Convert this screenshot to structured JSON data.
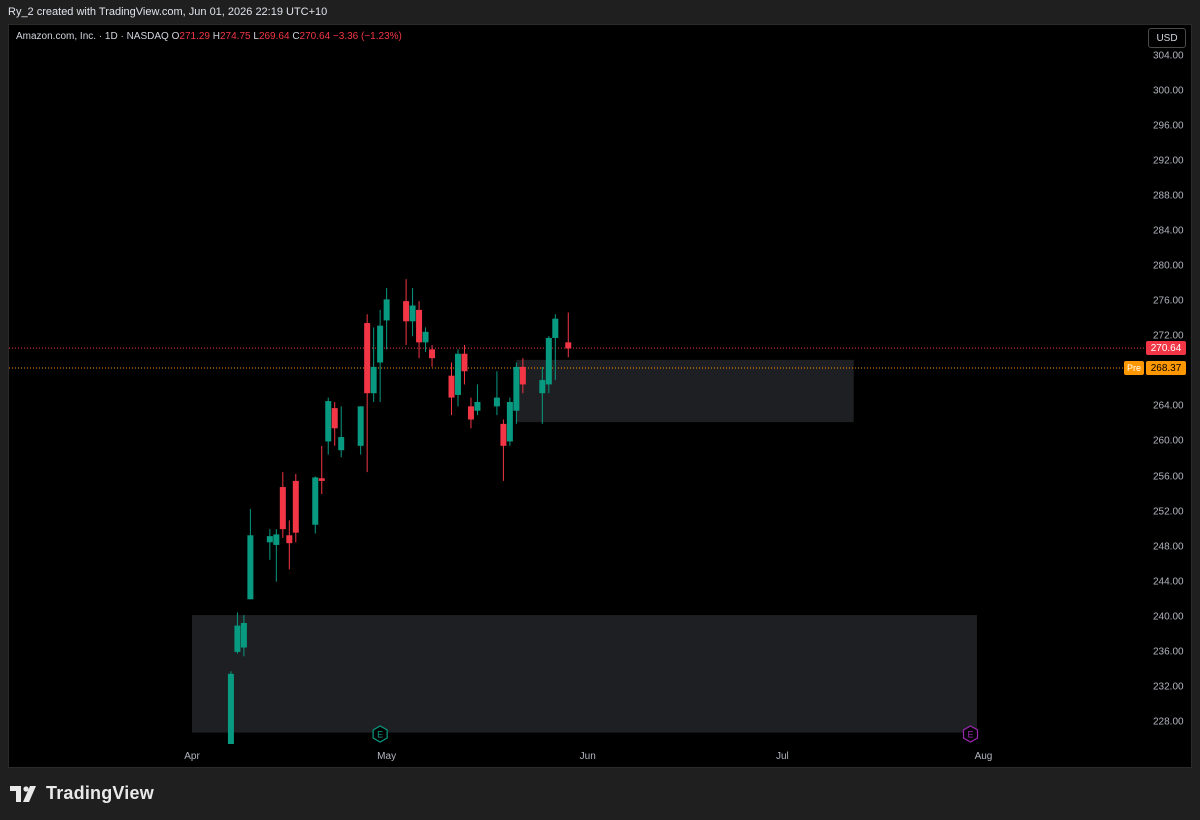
{
  "header": {
    "text": "Ry_2 created with TradingView.com, Jun 01, 2026 22:19 UTC+10"
  },
  "legend": {
    "symbol": "Amazon.com, Inc. · 1D · NASDAQ",
    "o_label": "O",
    "o": "271.29",
    "h_label": "H",
    "h": "274.75",
    "l_label": "L",
    "l": "269.64",
    "c_label": "C",
    "c": "270.64",
    "change": "−3.36 (−1.23%)"
  },
  "currency_button": "USD",
  "price_labels": {
    "last": "270.64",
    "pre_tag": "Pre",
    "pre": "268.37"
  },
  "footer": {
    "brand": "TradingView"
  },
  "colors": {
    "up": "#089981",
    "down": "#f23645",
    "pre": "#ff9800",
    "zone": "#1e1f22",
    "earnings_past": "#089981",
    "earnings_future": "#9c27b0"
  },
  "icons": {
    "earnings": "E",
    "logo": "tradingview-logo-icon"
  },
  "chart_data": {
    "type": "candlestick",
    "ylim": [
      225.5,
      307.6
    ],
    "y_ticks": [
      "304.00",
      "300.00",
      "296.00",
      "292.00",
      "288.00",
      "284.00",
      "280.00",
      "276.00",
      "272.00",
      "268.00",
      "264.00",
      "260.00",
      "256.00",
      "252.00",
      "248.00",
      "244.00",
      "240.00",
      "236.00",
      "232.00",
      "228.00"
    ],
    "x_ticks": [
      {
        "label": "Apr",
        "date": "2026-04-01"
      },
      {
        "label": "May",
        "date": "2026-05-01"
      },
      {
        "label": "Jun",
        "date": "2026-06-01"
      },
      {
        "label": "Jul",
        "date": "2026-07-01"
      },
      {
        "label": "Aug",
        "date": "2026-08-01"
      }
    ],
    "candles": [
      {
        "date": "2026-04-07",
        "o": 225.5,
        "h": 233.8,
        "l": 225.5,
        "c": 233.5
      },
      {
        "date": "2026-04-08",
        "o": 236.0,
        "h": 240.5,
        "l": 235.8,
        "c": 239.0
      },
      {
        "date": "2026-04-09",
        "o": 236.5,
        "h": 240.2,
        "l": 235.5,
        "c": 239.3
      },
      {
        "date": "2026-04-10",
        "o": 242.0,
        "h": 252.3,
        "l": 242.0,
        "c": 249.3
      },
      {
        "date": "2026-04-13",
        "o": 248.5,
        "h": 250.0,
        "l": 246.5,
        "c": 249.2
      },
      {
        "date": "2026-04-14",
        "o": 248.2,
        "h": 250.0,
        "l": 244.0,
        "c": 249.4
      },
      {
        "date": "2026-04-15",
        "o": 254.8,
        "h": 256.5,
        "l": 249.0,
        "c": 250.0
      },
      {
        "date": "2026-04-16",
        "o": 249.3,
        "h": 251.0,
        "l": 245.4,
        "c": 248.4
      },
      {
        "date": "2026-04-17",
        "o": 255.5,
        "h": 256.3,
        "l": 248.5,
        "c": 249.6
      },
      {
        "date": "2026-04-20",
        "o": 250.5,
        "h": 256.0,
        "l": 249.5,
        "c": 255.9
      },
      {
        "date": "2026-04-21",
        "o": 255.8,
        "h": 259.5,
        "l": 254.0,
        "c": 255.5
      },
      {
        "date": "2026-04-22",
        "o": 260.0,
        "h": 265.0,
        "l": 258.5,
        "c": 264.6
      },
      {
        "date": "2026-04-23",
        "o": 263.8,
        "h": 264.5,
        "l": 259.5,
        "c": 261.5
      },
      {
        "date": "2026-04-24",
        "o": 259.0,
        "h": 264.0,
        "l": 258.2,
        "c": 260.5
      },
      {
        "date": "2026-04-27",
        "o": 259.5,
        "h": 264.0,
        "l": 258.5,
        "c": 264.0
      },
      {
        "date": "2026-04-28",
        "o": 273.5,
        "h": 274.5,
        "l": 256.5,
        "c": 265.5
      },
      {
        "date": "2026-04-29",
        "o": 265.5,
        "h": 273.0,
        "l": 264.5,
        "c": 268.5
      },
      {
        "date": "2026-04-30",
        "o": 269.0,
        "h": 275.0,
        "l": 264.5,
        "c": 273.2
      },
      {
        "date": "2026-05-01",
        "o": 273.8,
        "h": 277.5,
        "l": 270.5,
        "c": 276.2
      },
      {
        "date": "2026-05-04",
        "o": 276.0,
        "h": 278.5,
        "l": 271.0,
        "c": 273.7
      },
      {
        "date": "2026-05-05",
        "o": 273.7,
        "h": 277.5,
        "l": 272.0,
        "c": 275.5
      },
      {
        "date": "2026-05-06",
        "o": 275.0,
        "h": 276.0,
        "l": 269.5,
        "c": 271.3
      },
      {
        "date": "2026-05-07",
        "o": 271.3,
        "h": 273.0,
        "l": 270.2,
        "c": 272.5
      },
      {
        "date": "2026-05-08",
        "o": 270.5,
        "h": 271.0,
        "l": 268.5,
        "c": 269.5
      },
      {
        "date": "2026-05-11",
        "o": 267.5,
        "h": 269.0,
        "l": 263.0,
        "c": 265.0
      },
      {
        "date": "2026-05-12",
        "o": 265.3,
        "h": 270.5,
        "l": 264.0,
        "c": 270.0
      },
      {
        "date": "2026-05-13",
        "o": 270.0,
        "h": 271.0,
        "l": 266.5,
        "c": 268.0
      },
      {
        "date": "2026-05-14",
        "o": 264.0,
        "h": 265.0,
        "l": 261.5,
        "c": 262.5
      },
      {
        "date": "2026-05-15",
        "o": 263.5,
        "h": 266.5,
        "l": 263.0,
        "c": 264.5
      },
      {
        "date": "2026-05-18",
        "o": 264.0,
        "h": 268.0,
        "l": 263.0,
        "c": 265.0
      },
      {
        "date": "2026-05-19",
        "o": 262.0,
        "h": 262.5,
        "l": 255.5,
        "c": 259.5
      },
      {
        "date": "2026-05-20",
        "o": 260.0,
        "h": 265.0,
        "l": 259.5,
        "c": 264.5
      },
      {
        "date": "2026-05-21",
        "o": 263.5,
        "h": 269.0,
        "l": 262.0,
        "c": 268.5
      },
      {
        "date": "2026-05-22",
        "o": 268.5,
        "h": 269.5,
        "l": 265.5,
        "c": 266.5
      },
      {
        "date": "2026-05-25",
        "o": 265.5,
        "h": 268.5,
        "l": 262.0,
        "c": 267.0
      },
      {
        "date": "2026-05-26",
        "o": 266.5,
        "h": 272.0,
        "l": 265.5,
        "c": 271.8
      },
      {
        "date": "2026-05-27",
        "o": 271.8,
        "h": 274.5,
        "l": 267.0,
        "c": 274.0
      },
      {
        "date": "2026-05-29",
        "o": 271.3,
        "h": 274.7,
        "l": 269.6,
        "c": 270.6
      }
    ],
    "zones": [
      {
        "start": "2026-04-01",
        "end": "2026-07-31",
        "top": 240.2,
        "bottom": 226.8
      },
      {
        "start": "2026-05-21",
        "end": "2026-07-12",
        "top": 269.3,
        "bottom": 262.2
      }
    ],
    "price_lines": [
      {
        "value": 270.64,
        "color": "#f23645"
      },
      {
        "value": 268.37,
        "color": "#ff9800"
      }
    ],
    "earnings_markers": [
      {
        "date": "2026-04-30",
        "color": "#089981"
      },
      {
        "date": "2026-07-30",
        "color": "#9c27b0"
      }
    ]
  }
}
